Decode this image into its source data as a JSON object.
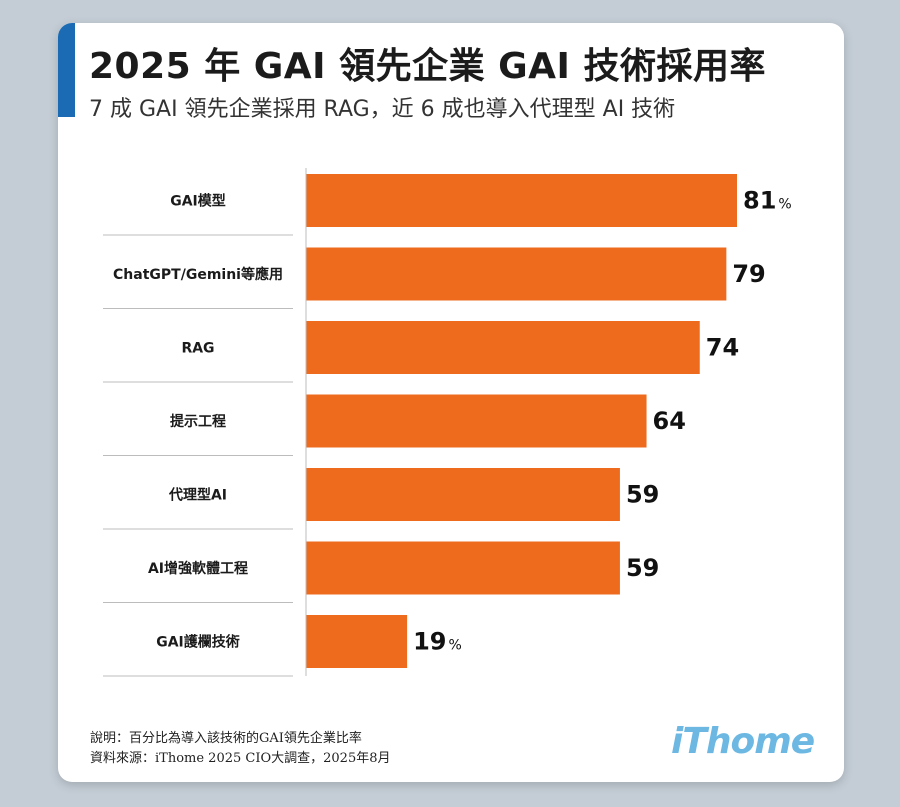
{
  "header": {
    "title": "2025 年 GAI 領先企業 GAI 技術採用率",
    "subtitle": "7 成 GAI 領先企業採用 RAG，近 6 成也導入代理型 AI 技術"
  },
  "chart_data": {
    "type": "bar",
    "orientation": "horizontal",
    "categories": [
      "GAI模型",
      "ChatGPT/Gemini等應用",
      "RAG",
      "提示工程",
      "代理型AI",
      "AI增強軟體工程",
      "GAI護欄技術"
    ],
    "values": [
      81,
      79,
      74,
      64,
      59,
      59,
      19
    ],
    "value_labels": [
      "81",
      "79",
      "74",
      "64",
      "59",
      "59",
      "19"
    ],
    "value_suffixes": [
      "%",
      "",
      "",
      "",
      "",
      "",
      "%"
    ],
    "unit": "%",
    "bar_color": "#ee6b1e",
    "xlim": [
      0,
      100
    ],
    "grid": false,
    "axis_line_color": "#bcbcbc"
  },
  "footer": {
    "note": "說明：百分比為導入該技術的GAI領先企業比率",
    "source": "資料來源：iThome 2025 CIO大調查，2025年8月",
    "logo": "iThome"
  }
}
